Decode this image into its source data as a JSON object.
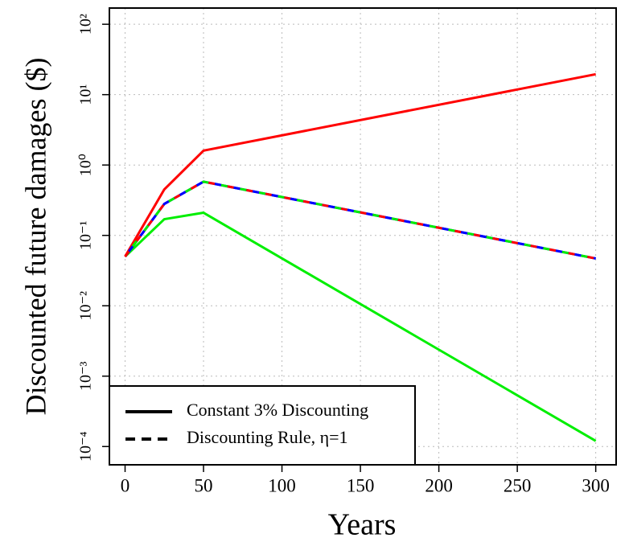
{
  "chart_data": {
    "type": "line",
    "xlabel": "Years",
    "ylabel": "Discounted future damages ($)",
    "x": [
      0,
      25,
      50,
      300
    ],
    "series": [
      {
        "color": "#00ee00",
        "dash": false,
        "values": [
          0.05,
          0.17,
          0.21,
          0.00012
        ]
      },
      {
        "color": "#0000ff",
        "dash": false,
        "values": [
          0.05,
          0.28,
          0.58,
          0.047
        ]
      },
      {
        "color": "#ff0000",
        "dash": false,
        "values": [
          0.05,
          0.45,
          1.6,
          19.5
        ]
      },
      {
        "color": "#ff0000",
        "dash": true,
        "values": [
          0.05,
          0.28,
          0.58,
          0.047
        ]
      },
      {
        "color": "#0000ff",
        "dash": true,
        "values": [
          0.05,
          0.28,
          0.58,
          0.047
        ]
      },
      {
        "color": "#00ee00",
        "dash": true,
        "values": [
          0.05,
          0.28,
          0.58,
          0.047
        ]
      }
    ],
    "xlim": [
      -10,
      313
    ],
    "ylim": [
      5.5e-05,
      170
    ],
    "ylog": true,
    "grid": true,
    "xticks": [
      0,
      50,
      100,
      150,
      200,
      250,
      300
    ],
    "yticks": [
      {
        "value": 0.0001,
        "label": "10⁻⁴"
      },
      {
        "value": 0.001,
        "label": "10⁻³"
      },
      {
        "value": 0.01,
        "label": "10⁻²"
      },
      {
        "value": 0.1,
        "label": "10⁻¹"
      },
      {
        "value": 1,
        "label": "10⁰"
      },
      {
        "value": 10,
        "label": "10¹"
      },
      {
        "value": 100,
        "label": "10²"
      }
    ],
    "legend_position": "lower left",
    "legend_entries": [
      {
        "label": "Constant 3% Discounting",
        "dash": false
      },
      {
        "label": "Discounting Rule, η=1",
        "dash": true
      }
    ]
  }
}
